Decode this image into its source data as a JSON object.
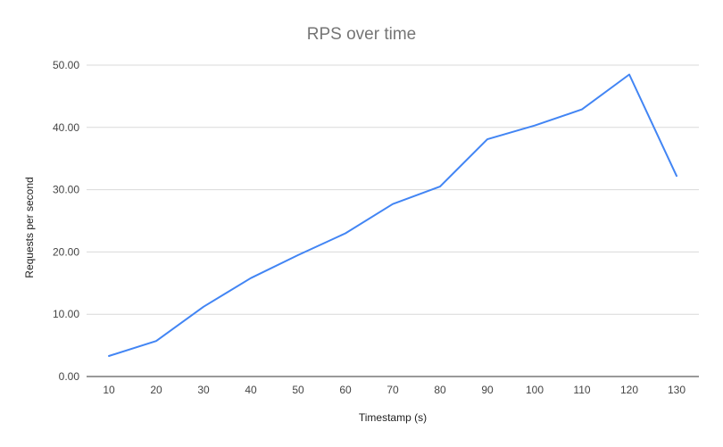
{
  "chart_data": {
    "type": "line",
    "title": "RPS over time",
    "xlabel": "Timestamp (s)",
    "ylabel": "Requests per second",
    "x": [
      10,
      20,
      30,
      40,
      50,
      60,
      70,
      80,
      90,
      100,
      110,
      120,
      130
    ],
    "series": [
      {
        "values": [
          3.3,
          5.7,
          11.2,
          15.8,
          19.5,
          23.0,
          27.7,
          30.5,
          38.1,
          40.3,
          42.9,
          48.5,
          32.2
        ],
        "color": "#4285f4"
      }
    ],
    "ylim": [
      0,
      50
    ],
    "yticks": [
      "0.00",
      "10.00",
      "20.00",
      "30.00",
      "40.00",
      "50.00"
    ],
    "xticks": [
      "10",
      "20",
      "30",
      "40",
      "50",
      "60",
      "70",
      "80",
      "90",
      "100",
      "110",
      "120",
      "130"
    ],
    "grid": true,
    "legend": "none"
  }
}
